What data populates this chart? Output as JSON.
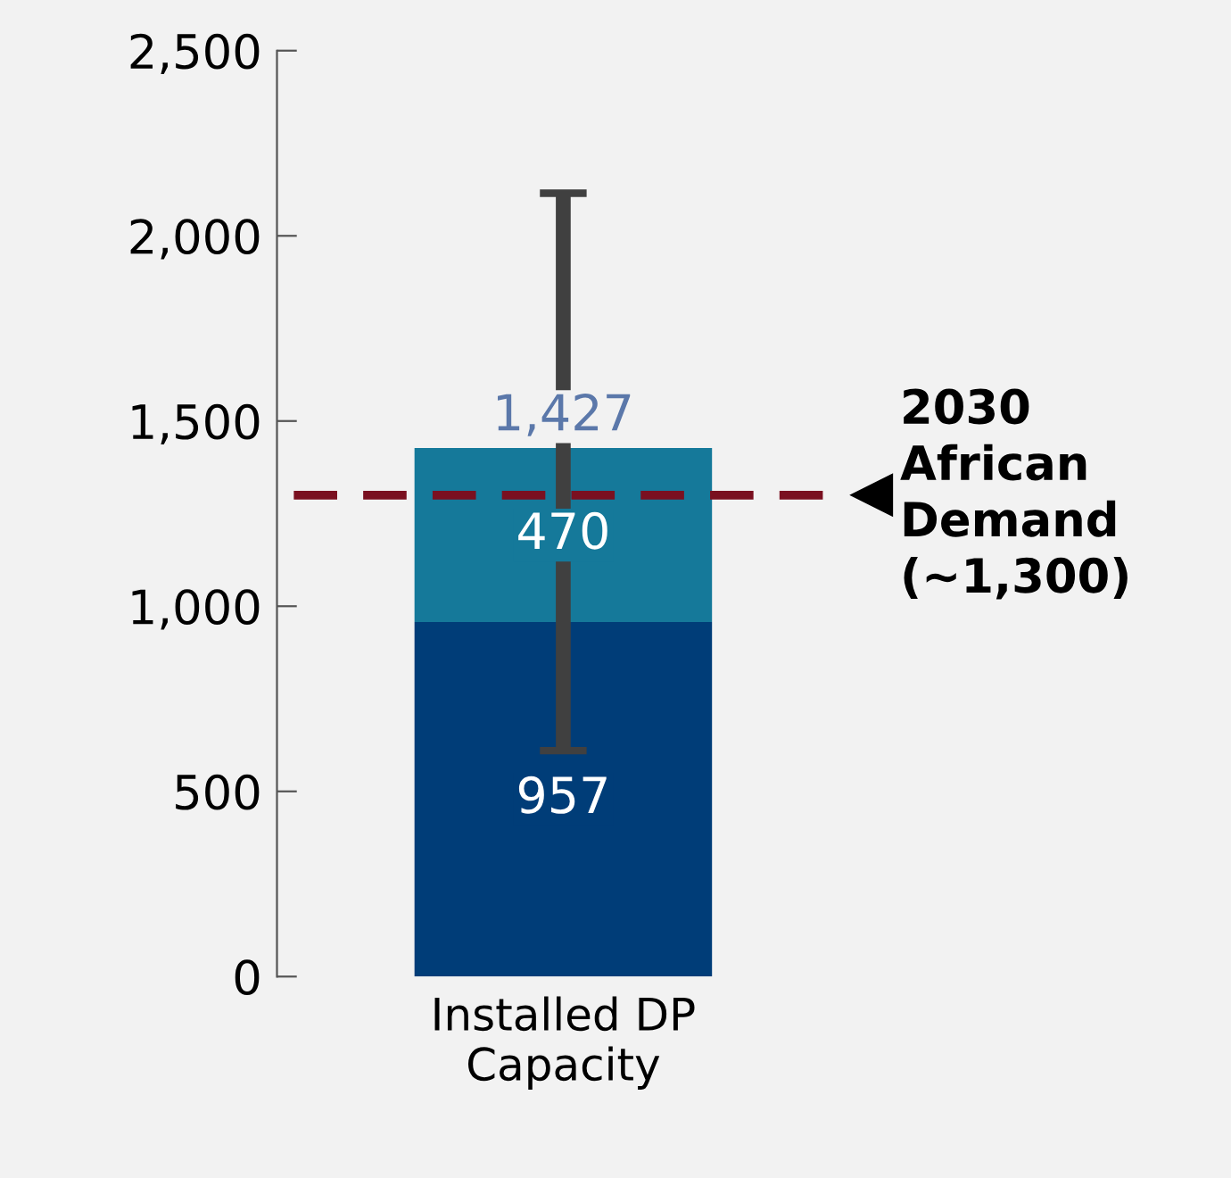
{
  "chart_data": {
    "type": "bar",
    "stacked": true,
    "categories": [
      "Installed DP\nCapacity"
    ],
    "series": [
      {
        "color": "#003d78",
        "values": [
          957
        ]
      },
      {
        "color": "#15799a",
        "values": [
          470
        ],
        "errors": [
          [
            610,
            2115
          ]
        ]
      }
    ],
    "ylim": [
      0,
      2500
    ],
    "yticks": [
      {
        "value": 0,
        "label": "0"
      },
      {
        "value": 500,
        "label": "500"
      },
      {
        "value": 1000,
        "label": "1,000"
      },
      {
        "value": 1500,
        "label": "1,500"
      },
      {
        "value": 2000,
        "label": "2,000"
      },
      {
        "value": 2500,
        "label": "2,500"
      }
    ],
    "data_labels": true,
    "totals": [
      "1,427"
    ],
    "grid": false,
    "legend": false,
    "ref_lines": [
      {
        "axis": "y",
        "value": 1300,
        "label": "2030\nAfrican\nDemand\n(~1,300)",
        "color": "#7a1020",
        "line_style": "dashed"
      }
    ]
  }
}
